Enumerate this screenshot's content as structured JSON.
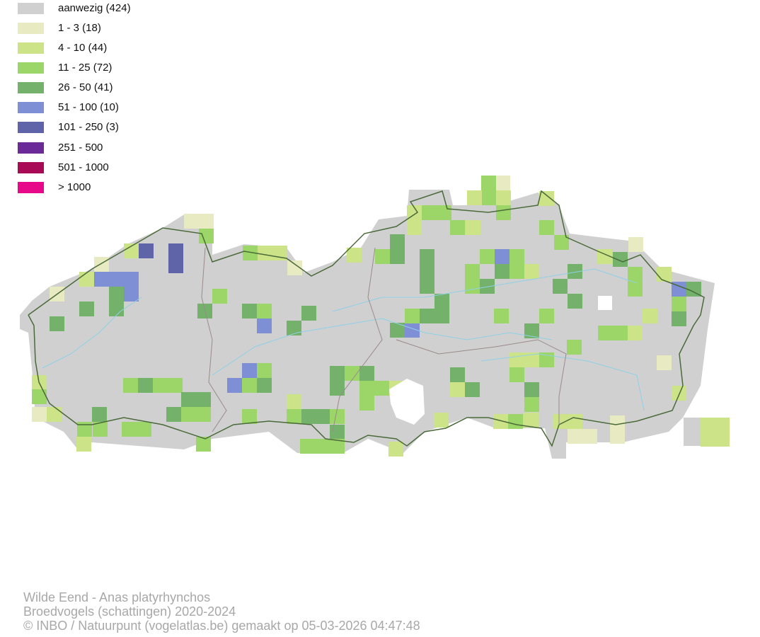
{
  "legend": {
    "items": [
      {
        "label": "aanwezig (424)",
        "color": "#d0d0d0"
      },
      {
        "label": "1 - 3 (18)",
        "color": "#e8ebc2"
      },
      {
        "label": "4 - 10 (44)",
        "color": "#cce388"
      },
      {
        "label": "11 - 25 (72)",
        "color": "#9dd668"
      },
      {
        "label": "26 - 50 (41)",
        "color": "#74b26c"
      },
      {
        "label": "51 - 100 (10)",
        "color": "#7f8fd6"
      },
      {
        "label": "101 - 250 (3)",
        "color": "#5f63a8"
      },
      {
        "label": "251 - 500",
        "color": "#6a2a98"
      },
      {
        "label": "501 - 1000",
        "color": "#a80a56"
      },
      {
        "label": "> 1000",
        "color": "#e8088a"
      }
    ]
  },
  "footer": {
    "lines": [
      "Wilde Eend - Anas platyrhynchos",
      "Broedvogels (schattingen) 2020-2024",
      "© INBO / Natuurpunt (vogelatlas.be) gemaakt op 05-03-2026 04:47:48"
    ]
  }
}
